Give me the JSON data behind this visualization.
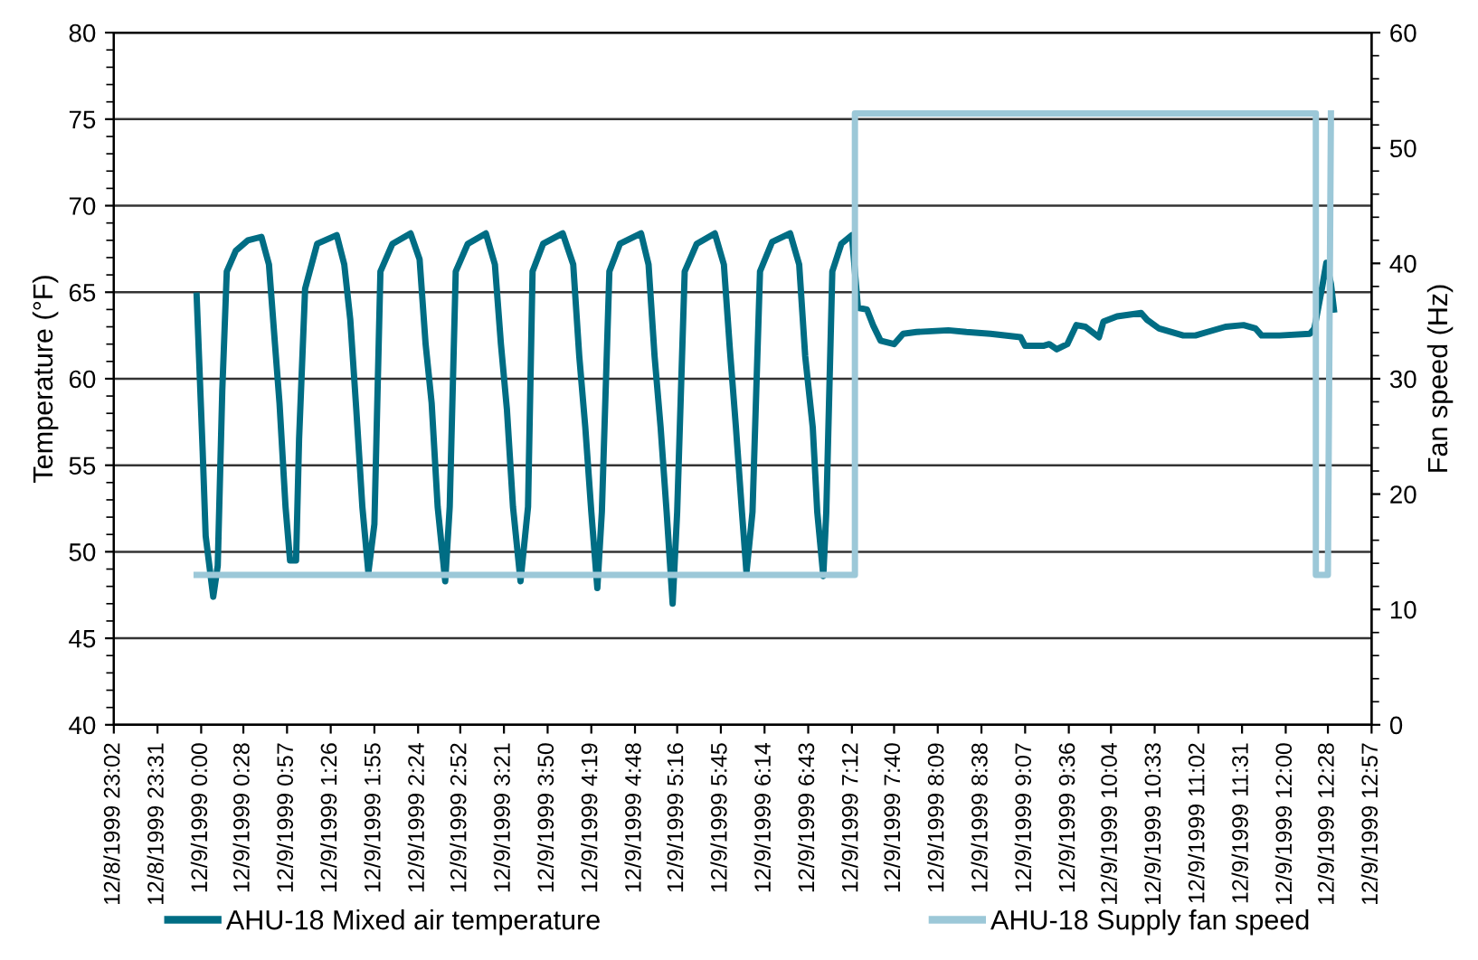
{
  "chart_data": {
    "type": "line",
    "ylabel": "Temperature (°F)",
    "y2label": "Fan speed (Hz)",
    "xlim": [
      "1999-12-08T23:02",
      "1999-12-09T12:57"
    ],
    "xticks": [
      {
        "value": "1999-12-08T23:02",
        "label": "12/8/1999 23:02"
      },
      {
        "value": "1999-12-08T23:31",
        "label": "12/8/1999 23:31"
      },
      {
        "value": "1999-12-09T00:00",
        "label": "12/9/1999 0:00"
      },
      {
        "value": "1999-12-09T00:28",
        "label": "12/9/1999 0:28"
      },
      {
        "value": "1999-12-09T00:57",
        "label": "12/9/1999 0:57"
      },
      {
        "value": "1999-12-09T01:26",
        "label": "12/9/1999 1:26"
      },
      {
        "value": "1999-12-09T01:55",
        "label": "12/9/1999 1:55"
      },
      {
        "value": "1999-12-09T02:24",
        "label": "12/9/1999 2:24"
      },
      {
        "value": "1999-12-09T02:52",
        "label": "12/9/1999 2:52"
      },
      {
        "value": "1999-12-09T03:21",
        "label": "12/9/1999 3:21"
      },
      {
        "value": "1999-12-09T03:50",
        "label": "12/9/1999 3:50"
      },
      {
        "value": "1999-12-09T04:19",
        "label": "12/9/1999 4:19"
      },
      {
        "value": "1999-12-09T04:48",
        "label": "12/9/1999 4:48"
      },
      {
        "value": "1999-12-09T05:16",
        "label": "12/9/1999 5:16"
      },
      {
        "value": "1999-12-09T05:45",
        "label": "12/9/1999 5:45"
      },
      {
        "value": "1999-12-09T06:14",
        "label": "12/9/1999 6:14"
      },
      {
        "value": "1999-12-09T06:43",
        "label": "12/9/1999 6:43"
      },
      {
        "value": "1999-12-09T07:12",
        "label": "12/9/1999 7:12"
      },
      {
        "value": "1999-12-09T07:40",
        "label": "12/9/1999 7:40"
      },
      {
        "value": "1999-12-09T08:09",
        "label": "12/9/1999 8:09"
      },
      {
        "value": "1999-12-09T08:38",
        "label": "12/9/1999 8:38"
      },
      {
        "value": "1999-12-09T09:07",
        "label": "12/9/1999 9:07"
      },
      {
        "value": "1999-12-09T09:36",
        "label": "12/9/1999 9:36"
      },
      {
        "value": "1999-12-09T10:04",
        "label": "12/9/1999 10:04"
      },
      {
        "value": "1999-12-09T10:33",
        "label": "12/9/1999 10:33"
      },
      {
        "value": "1999-12-09T11:02",
        "label": "12/9/1999 11:02"
      },
      {
        "value": "1999-12-09T11:31",
        "label": "12/9/1999 11:31"
      },
      {
        "value": "1999-12-09T12:00",
        "label": "12/9/1999 12:00"
      },
      {
        "value": "1999-12-09T12:28",
        "label": "12/9/1999 12:28"
      },
      {
        "value": "1999-12-09T12:57",
        "label": "12/9/1999 12:57"
      }
    ],
    "ylim": [
      40,
      80
    ],
    "yticks": [
      40,
      45,
      50,
      55,
      60,
      65,
      70,
      75,
      80
    ],
    "y2lim": [
      0,
      60
    ],
    "y2ticks": [
      0,
      10,
      20,
      30,
      40,
      50,
      60
    ],
    "grid": "y",
    "legend": "bottom",
    "marker": "none",
    "line_style": "solid",
    "series": [
      {
        "name": "AHU-18 Mixed air temperature",
        "color": "#006d84",
        "x": [
          "1999-12-08T23:57",
          "1999-12-09T00:01",
          "1999-12-09T00:03",
          "1999-12-09T00:08",
          "1999-12-09T00:11",
          "1999-12-09T00:14",
          "1999-12-09T00:17",
          "1999-12-09T00:23",
          "1999-12-09T00:31",
          "1999-12-09T00:40",
          "1999-12-09T00:45",
          "1999-12-09T00:49",
          "1999-12-09T00:52",
          "1999-12-09T00:56",
          "1999-12-09T00:59",
          "1999-12-09T01:03",
          "1999-12-09T01:05",
          "1999-12-09T01:09",
          "1999-12-09T01:17",
          "1999-12-09T01:30",
          "1999-12-09T01:35",
          "1999-12-09T01:39",
          "1999-12-09T01:43",
          "1999-12-09T01:47",
          "1999-12-09T01:51",
          "1999-12-09T01:55",
          "1999-12-09T01:59",
          "1999-12-09T02:07",
          "1999-12-09T02:19",
          "1999-12-09T02:25",
          "1999-12-09T02:29",
          "1999-12-09T02:33",
          "1999-12-09T02:37",
          "1999-12-09T02:42",
          "1999-12-09T02:45",
          "1999-12-09T02:49",
          "1999-12-09T02:57",
          "1999-12-09T03:09",
          "1999-12-09T03:15",
          "1999-12-09T03:19",
          "1999-12-09T03:23",
          "1999-12-09T03:27",
          "1999-12-09T03:32",
          "1999-12-09T03:37",
          "1999-12-09T03:40",
          "1999-12-09T03:47",
          "1999-12-09T04:00",
          "1999-12-09T04:07",
          "1999-12-09T04:11",
          "1999-12-09T04:15",
          "1999-12-09T04:19",
          "1999-12-09T04:23",
          "1999-12-09T04:26",
          "1999-12-09T04:31",
          "1999-12-09T04:38",
          "1999-12-09T04:52",
          "1999-12-09T04:57",
          "1999-12-09T05:01",
          "1999-12-09T05:05",
          "1999-12-09T05:09",
          "1999-12-09T05:13",
          "1999-12-09T05:16",
          "1999-12-09T05:21",
          "1999-12-09T05:29",
          "1999-12-09T05:41",
          "1999-12-09T05:47",
          "1999-12-09T05:51",
          "1999-12-09T05:55",
          "1999-12-09T05:59",
          "1999-12-09T06:02",
          "1999-12-09T06:06",
          "1999-12-09T06:11",
          "1999-12-09T06:19",
          "1999-12-09T06:31",
          "1999-12-09T06:37",
          "1999-12-09T06:41",
          "1999-12-09T06:46",
          "1999-12-09T06:49",
          "1999-12-09T06:53",
          "1999-12-09T06:55",
          "1999-12-09T06:59",
          "1999-12-09T07:05",
          "1999-12-09T07:12",
          "1999-12-09T07:16",
          "1999-12-09T07:22",
          "1999-12-09T07:26",
          "1999-12-09T07:31",
          "1999-12-09T07:40",
          "1999-12-09T07:46",
          "1999-12-09T07:55",
          "1999-12-09T08:16",
          "1999-12-09T08:28",
          "1999-12-09T08:44",
          "1999-12-09T09:04",
          "1999-12-09T09:07",
          "1999-12-09T09:19",
          "1999-12-09T09:23",
          "1999-12-09T09:28",
          "1999-12-09T09:35",
          "1999-12-09T09:41",
          "1999-12-09T09:47",
          "1999-12-09T09:56",
          "1999-12-09T09:59",
          "1999-12-09T10:08",
          "1999-12-09T10:24",
          "1999-12-09T10:28",
          "1999-12-09T10:36",
          "1999-12-09T10:52",
          "1999-12-09T11:00",
          "1999-12-09T11:08",
          "1999-12-09T11:20",
          "1999-12-09T11:32",
          "1999-12-09T11:40",
          "1999-12-09T11:44",
          "1999-12-09T11:56",
          "1999-12-09T12:16",
          "1999-12-09T12:19",
          "1999-12-09T12:24",
          "1999-12-09T12:27",
          "1999-12-09T12:30",
          "1999-12-09T12:32"
        ],
        "values": [
          64.8,
          55.8,
          50.9,
          47.4,
          49.2,
          59.3,
          66.2,
          67.4,
          68.0,
          68.2,
          66.6,
          62.0,
          58.6,
          52.6,
          49.5,
          49.5,
          56.5,
          65.2,
          67.8,
          68.3,
          66.6,
          63.4,
          58.2,
          52.6,
          48.8,
          51.6,
          66.2,
          67.8,
          68.4,
          66.9,
          62.0,
          58.6,
          52.6,
          48.3,
          52.6,
          66.2,
          67.8,
          68.4,
          66.6,
          62.0,
          58.2,
          52.6,
          48.3,
          52.6,
          66.2,
          67.8,
          68.4,
          66.6,
          61.3,
          57.2,
          52.3,
          47.9,
          52.3,
          66.2,
          67.8,
          68.4,
          66.6,
          61.3,
          57.2,
          52.3,
          47.0,
          52.3,
          66.2,
          67.8,
          68.4,
          66.6,
          61.7,
          57.2,
          52.3,
          48.8,
          52.3,
          66.2,
          67.9,
          68.4,
          66.6,
          61.3,
          57.2,
          52.3,
          48.6,
          52.3,
          66.2,
          67.8,
          68.3,
          64.1,
          64.0,
          63.1,
          62.2,
          62.0,
          62.6,
          62.7,
          62.8,
          62.7,
          62.6,
          62.4,
          61.9,
          61.9,
          62.0,
          61.7,
          62.0,
          63.1,
          63.0,
          62.4,
          63.3,
          63.6,
          63.8,
          63.4,
          62.9,
          62.5,
          62.5,
          62.7,
          63.0,
          63.1,
          62.9,
          62.5,
          62.5,
          62.6,
          62.9,
          65.2,
          66.7,
          65.5,
          64.0
        ]
      },
      {
        "name": "AHU-18 Supply fan speed",
        "color": "#9cc8d8",
        "axis": "y2",
        "x": [
          "1999-12-08T23:57",
          "1999-12-09T07:14",
          "1999-12-09T07:14",
          "1999-12-09T12:20",
          "1999-12-09T12:20",
          "1999-12-09T12:28",
          "1999-12-09T12:30"
        ],
        "values": [
          13,
          13,
          53,
          53,
          13,
          13,
          53
        ]
      }
    ]
  }
}
